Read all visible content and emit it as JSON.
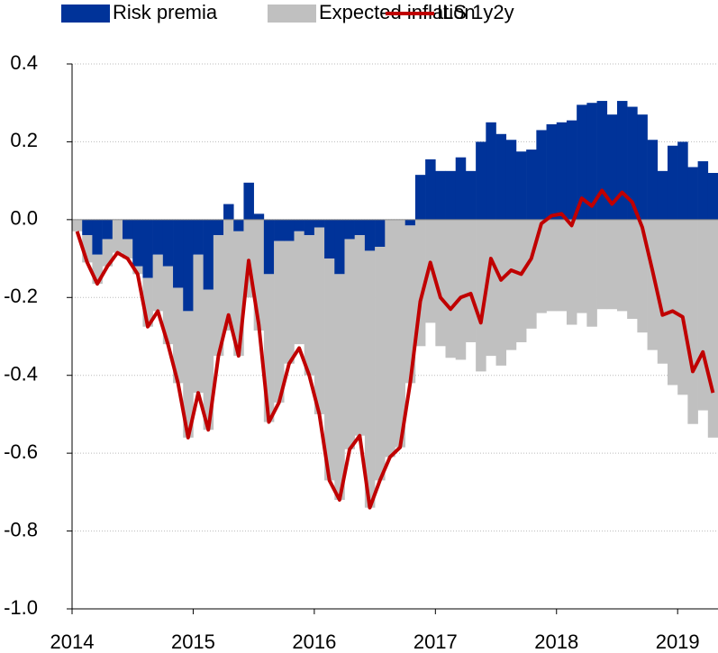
{
  "chart_data": {
    "type": "bar",
    "categories": [
      "2014",
      null,
      null,
      null,
      null,
      null,
      null,
      null,
      null,
      null,
      null,
      null,
      "2015",
      null,
      null,
      null,
      null,
      null,
      null,
      null,
      null,
      null,
      null,
      null,
      "2016",
      null,
      null,
      null,
      null,
      null,
      null,
      null,
      null,
      null,
      null,
      null,
      "2017",
      null,
      null,
      null,
      null,
      null,
      null,
      null,
      null,
      null,
      null,
      null,
      "2018",
      null,
      null,
      null,
      null,
      null,
      null,
      null,
      null,
      null,
      null,
      null,
      "2019",
      null,
      null,
      null
    ],
    "series": [
      {
        "name": "Risk premia",
        "type": "bar",
        "color": "#003399",
        "values": [
          0,
          -0.04,
          -0.09,
          -0.05,
          0,
          -0.05,
          -0.12,
          -0.15,
          -0.09,
          -0.12,
          -0.175,
          -0.235,
          -0.09,
          -0.18,
          -0.04,
          0.04,
          -0.03,
          0.095,
          0.015,
          -0.14,
          -0.055,
          -0.055,
          -0.03,
          -0.04,
          -0.02,
          -0.1,
          -0.14,
          -0.05,
          -0.04,
          -0.08,
          -0.07,
          0,
          0,
          -0.015,
          0.115,
          0.155,
          0.125,
          0.125,
          0.16,
          0.125,
          0.2,
          0.25,
          0.22,
          0.205,
          0.175,
          0.18,
          0.23,
          0.245,
          0.25,
          0.255,
          0.295,
          0.3,
          0.305,
          0.27,
          0.305,
          0.29,
          0.27,
          0.205,
          0.125,
          0.19,
          0.2,
          0.135,
          0.15,
          0.12
        ]
      },
      {
        "name": "Expected inflation",
        "type": "bar",
        "color": "#c0c0c0",
        "values": [
          -0.03,
          -0.07,
          -0.075,
          -0.07,
          -0.085,
          -0.05,
          -0.02,
          -0.125,
          -0.145,
          -0.2,
          -0.245,
          -0.325,
          -0.355,
          -0.36,
          -0.31,
          -0.285,
          -0.32,
          -0.2,
          -0.285,
          -0.38,
          -0.415,
          -0.315,
          -0.29,
          -0.36,
          -0.48,
          -0.57,
          -0.58,
          -0.54,
          -0.515,
          -0.66,
          -0.6,
          -0.61,
          -0.585,
          -0.405,
          -0.325,
          -0.265,
          -0.325,
          -0.355,
          -0.36,
          -0.315,
          -0.39,
          -0.35,
          -0.375,
          -0.335,
          -0.315,
          -0.28,
          -0.24,
          -0.235,
          -0.235,
          -0.27,
          -0.24,
          -0.275,
          -0.23,
          -0.23,
          -0.235,
          -0.255,
          -0.29,
          -0.335,
          -0.37,
          -0.425,
          -0.45,
          -0.525,
          -0.49,
          -0.56
        ]
      },
      {
        "name": "ILS 1y2y",
        "type": "line",
        "color": "#c00000",
        "values": [
          -0.03,
          -0.11,
          -0.165,
          -0.12,
          -0.085,
          -0.1,
          -0.14,
          -0.275,
          -0.235,
          -0.32,
          -0.42,
          -0.56,
          -0.445,
          -0.54,
          -0.35,
          -0.245,
          -0.35,
          -0.105,
          -0.27,
          -0.52,
          -0.47,
          -0.37,
          -0.33,
          -0.4,
          -0.5,
          -0.67,
          -0.72,
          -0.59,
          -0.555,
          -0.74,
          -0.67,
          -0.61,
          -0.585,
          -0.42,
          -0.21,
          -0.11,
          -0.2,
          -0.23,
          -0.2,
          -0.19,
          -0.265,
          -0.1,
          -0.155,
          -0.13,
          -0.14,
          -0.1,
          -0.01,
          0.01,
          0.015,
          -0.015,
          0.055,
          0.035,
          0.075,
          0.04,
          0.07,
          0.045,
          -0.02,
          -0.13,
          -0.245,
          -0.235,
          -0.25,
          -0.39,
          -0.34,
          -0.445
        ]
      }
    ],
    "ylim": [
      -1.0,
      0.4
    ],
    "yticks": [
      0.4,
      0.2,
      {
        "value": 0,
        "label": "0.0"
      },
      -0.2,
      -0.4,
      -0.6,
      -0.8,
      {
        "value": -1.0,
        "label": "-1.0"
      }
    ],
    "grid": true,
    "legend": "top"
  }
}
